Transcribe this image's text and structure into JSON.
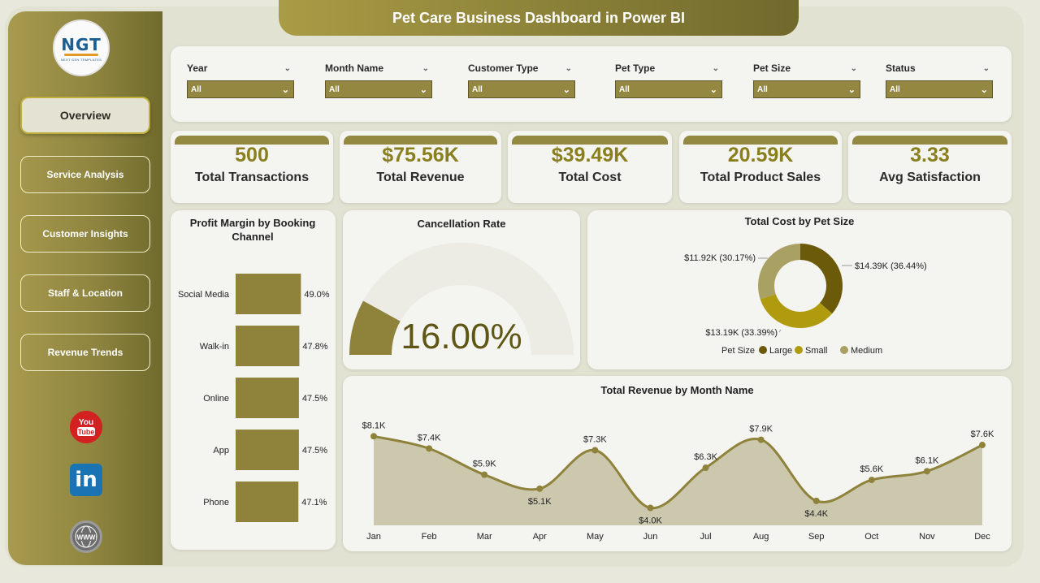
{
  "title": "Pet Care Business Dashboard in Power BI",
  "logo": {
    "text": "NGT",
    "subtext": "NEXT GEN TEMPLATES"
  },
  "nav": [
    {
      "label": "Overview",
      "active": true
    },
    {
      "label": "Service Analysis",
      "active": false
    },
    {
      "label": "Customer Insights",
      "active": false
    },
    {
      "label": "Staff & Location",
      "active": false
    },
    {
      "label": "Revenue Trends",
      "active": false
    }
  ],
  "social": {
    "youtube": "youtube-icon",
    "linkedin": "linkedin-icon",
    "website": "globe-icon"
  },
  "filters": [
    {
      "label": "Year",
      "value": "All"
    },
    {
      "label": "Month Name",
      "value": "All"
    },
    {
      "label": "Customer Type",
      "value": "All"
    },
    {
      "label": "Pet Type",
      "value": "All"
    },
    {
      "label": "Pet Size",
      "value": "All"
    },
    {
      "label": "Status",
      "value": "All"
    }
  ],
  "kpis": [
    {
      "value": "500",
      "label": "Total Transactions"
    },
    {
      "value": "$75.56K",
      "label": "Total Revenue"
    },
    {
      "value": "$39.49K",
      "label": "Total Cost"
    },
    {
      "value": "20.59K",
      "label": "Total Product Sales"
    },
    {
      "value": "3.33",
      "label": "Avg Satisfaction"
    }
  ],
  "colors": {
    "accent": "#8a7f1e",
    "bar": "#8f823b",
    "large": "#6b5a0a",
    "small": "#b09a0e",
    "medium": "#a9a064"
  },
  "chart_data": [
    {
      "type": "bar",
      "title": "Profit Margin by Booking Channel",
      "categories": [
        "Social Media",
        "Walk-in",
        "Online",
        "App",
        "Phone"
      ],
      "values": [
        49.0,
        47.8,
        47.5,
        47.5,
        47.1
      ],
      "labels": [
        "49.0%",
        "47.8%",
        "47.5%",
        "47.5%",
        "47.1%"
      ]
    },
    {
      "type": "gauge",
      "title": "Cancellation Rate",
      "value": 16.0,
      "max": 100,
      "label": "16.00%"
    },
    {
      "type": "pie",
      "title": "Total Cost by Pet Size",
      "legend_title": "Pet Size",
      "categories": [
        "Large",
        "Small",
        "Medium"
      ],
      "values": [
        14.39,
        13.19,
        11.92
      ],
      "labels": [
        "$14.39K (36.44%)",
        "$13.19K (33.39%)",
        "$11.92K (30.17%)"
      ]
    },
    {
      "type": "area",
      "title": "Total Revenue by Month Name",
      "categories": [
        "Jan",
        "Feb",
        "Mar",
        "Apr",
        "May",
        "Jun",
        "Jul",
        "Aug",
        "Sep",
        "Oct",
        "Nov",
        "Dec"
      ],
      "values": [
        8.1,
        7.4,
        5.9,
        5.1,
        7.3,
        4.0,
        6.3,
        7.9,
        4.4,
        5.6,
        6.1,
        7.6
      ],
      "labels": [
        "$8.1K",
        "$7.4K",
        "$5.9K",
        "$5.1K",
        "$7.3K",
        "$4.0K",
        "$6.3K",
        "$7.9K",
        "$4.4K",
        "$5.6K",
        "$6.1K",
        "$7.6K"
      ]
    }
  ]
}
